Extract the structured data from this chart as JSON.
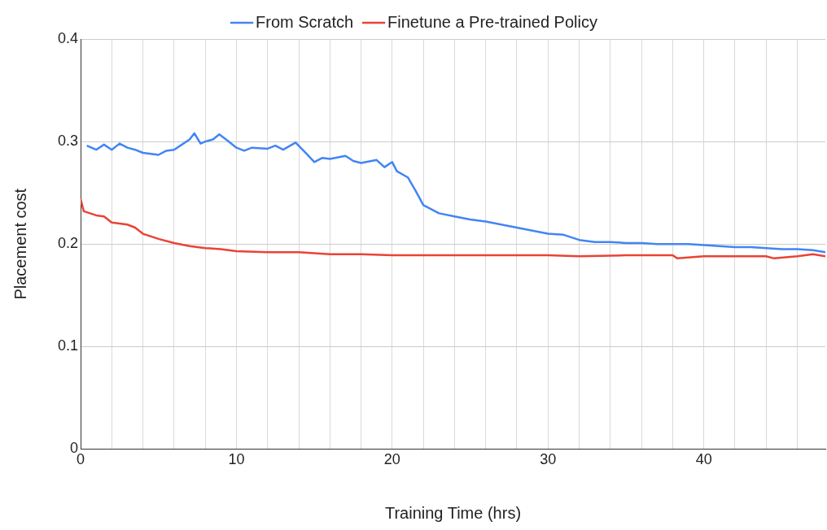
{
  "chart_data": {
    "type": "line",
    "xlabel": "Training Time (hrs)",
    "ylabel": "Placement cost",
    "legend": "top",
    "grid": true,
    "marker": "none",
    "line_style": "solid",
    "xlim": [
      0,
      47.8
    ],
    "xticks": [
      0,
      {
        "value": 2,
        "label": null
      },
      {
        "value": 4,
        "label": null
      },
      {
        "value": 6,
        "label": null
      },
      {
        "value": 8,
        "label": null
      },
      10,
      {
        "value": 12,
        "label": null
      },
      {
        "value": 14,
        "label": null
      },
      {
        "value": 16,
        "label": null
      },
      {
        "value": 18,
        "label": null
      },
      20,
      {
        "value": 22,
        "label": null
      },
      {
        "value": 24,
        "label": null
      },
      {
        "value": 26,
        "label": null
      },
      {
        "value": 28,
        "label": null
      },
      30,
      {
        "value": 32,
        "label": null
      },
      {
        "value": 34,
        "label": null
      },
      {
        "value": 36,
        "label": null
      },
      {
        "value": 38,
        "label": null
      },
      40,
      {
        "value": 42,
        "label": null
      },
      {
        "value": 44,
        "label": null
      },
      {
        "value": 46,
        "label": null
      }
    ],
    "ylim": [
      0,
      0.4
    ],
    "yticks": [
      0,
      0.1,
      0.2,
      0.3,
      0.4
    ],
    "series": [
      {
        "name": "From Scratch",
        "color": "#4285f4",
        "x": [
          0.4,
          1,
          1.5,
          2,
          2.5,
          3,
          3.5,
          4,
          5,
          5.5,
          6,
          6.5,
          7,
          7.3,
          7.7,
          8,
          8.5,
          8.9,
          9.5,
          10,
          10.5,
          11,
          12,
          12.5,
          13,
          13.8,
          14.5,
          15,
          15.5,
          16,
          17,
          17.5,
          18,
          19,
          19.5,
          20,
          20.3,
          21,
          21.5,
          22,
          23,
          24,
          25,
          26,
          27,
          28,
          29,
          30,
          31,
          32,
          33,
          34,
          35,
          36,
          37,
          38,
          39,
          40,
          41,
          42,
          43,
          44,
          45,
          46,
          47,
          47.8
        ],
        "values": [
          0.296,
          0.292,
          0.297,
          0.292,
          0.298,
          0.294,
          0.292,
          0.289,
          0.287,
          0.291,
          0.292,
          0.297,
          0.302,
          0.308,
          0.298,
          0.3,
          0.302,
          0.307,
          0.3,
          0.294,
          0.291,
          0.294,
          0.293,
          0.296,
          0.292,
          0.299,
          0.288,
          0.28,
          0.284,
          0.283,
          0.286,
          0.281,
          0.279,
          0.282,
          0.275,
          0.28,
          0.271,
          0.265,
          0.252,
          0.238,
          0.23,
          0.227,
          0.224,
          0.222,
          0.219,
          0.216,
          0.213,
          0.21,
          0.209,
          0.204,
          0.202,
          0.202,
          0.201,
          0.201,
          0.2,
          0.2,
          0.2,
          0.199,
          0.198,
          0.197,
          0.197,
          0.196,
          0.195,
          0.195,
          0.194,
          0.192
        ]
      },
      {
        "name": "Finetune a Pre-trained Policy",
        "color": "#ea4335",
        "x": [
          0,
          0.2,
          1,
          1.5,
          2,
          3,
          3.5,
          4,
          5,
          6,
          7,
          8,
          9,
          10,
          12,
          14,
          16,
          18,
          20,
          25,
          30,
          32,
          35,
          38,
          38.3,
          40,
          44,
          44.5,
          46,
          47,
          47.8
        ],
        "values": [
          0.244,
          0.232,
          0.228,
          0.227,
          0.221,
          0.219,
          0.216,
          0.21,
          0.205,
          0.201,
          0.198,
          0.196,
          0.195,
          0.193,
          0.192,
          0.192,
          0.19,
          0.19,
          0.189,
          0.189,
          0.189,
          0.188,
          0.189,
          0.189,
          0.186,
          0.188,
          0.188,
          0.186,
          0.188,
          0.19,
          0.188
        ]
      }
    ]
  }
}
